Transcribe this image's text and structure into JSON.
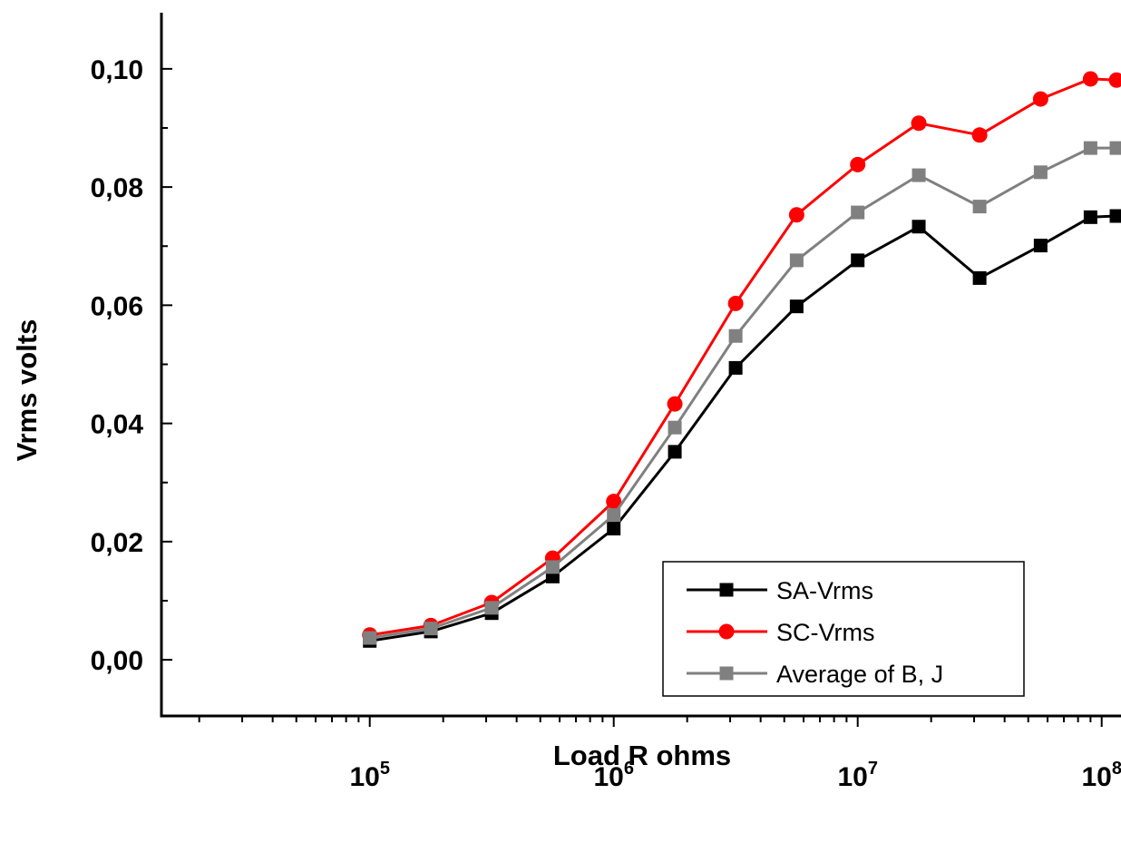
{
  "chart_data": {
    "type": "line",
    "xlabel": "Load R ohms",
    "ylabel": "Vrms volts",
    "x_scale": "log",
    "xlim": [
      14000,
      120000000
    ],
    "ylim": [
      -0.0095,
      0.1095
    ],
    "x_ticks": [
      {
        "base": "10",
        "exp": "5",
        "value": 100000
      },
      {
        "base": "10",
        "exp": "6",
        "value": 1000000
      },
      {
        "base": "10",
        "exp": "7",
        "value": 10000000
      },
      {
        "base": "10",
        "exp": "8",
        "value": 100000000
      }
    ],
    "y_ticks": [
      {
        "label": "0,00",
        "value": 0.0
      },
      {
        "label": "0,02",
        "value": 0.02
      },
      {
        "label": "0,04",
        "value": 0.04
      },
      {
        "label": "0,06",
        "value": 0.06
      },
      {
        "label": "0,08",
        "value": 0.08
      },
      {
        "label": "0,10",
        "value": 0.1
      }
    ],
    "x": [
      100000,
      178000,
      316000,
      562000,
      1000000,
      1780000,
      3160000,
      5620000,
      10000000,
      17800000,
      31600000,
      56200000,
      90000000,
      115000000
    ],
    "series": [
      {
        "name": "SA-Vrms",
        "color": "#000000",
        "marker": "square",
        "values": [
          0.0032,
          0.0048,
          0.0079,
          0.0141,
          0.0222,
          0.0352,
          0.0494,
          0.0598,
          0.0676,
          0.0733,
          0.0646,
          0.0701,
          0.0749,
          0.0751
        ]
      },
      {
        "name": "SC-Vrms",
        "color": "#ff0000",
        "marker": "circle",
        "values": [
          0.0042,
          0.0058,
          0.0097,
          0.0172,
          0.0268,
          0.0433,
          0.0603,
          0.0753,
          0.0838,
          0.0908,
          0.0888,
          0.0949,
          0.0983,
          0.0981
        ]
      },
      {
        "name": "Average of B, J",
        "color": "#808080",
        "marker": "square",
        "values": [
          0.0037,
          0.0053,
          0.0088,
          0.0157,
          0.0245,
          0.0393,
          0.0548,
          0.0676,
          0.0757,
          0.082,
          0.0767,
          0.0825,
          0.0866,
          0.0866
        ]
      }
    ],
    "grid": false,
    "legend": "bottom-right"
  }
}
